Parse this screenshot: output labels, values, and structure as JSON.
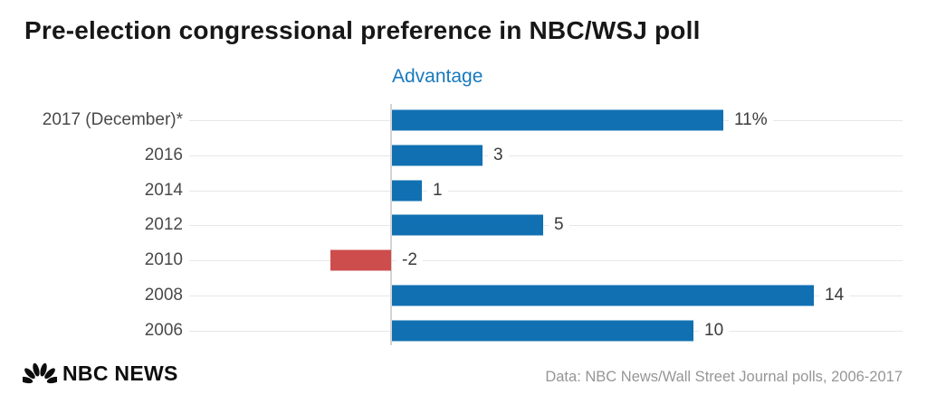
{
  "header": {
    "title": "Pre-election congressional preference in NBC/WSJ poll",
    "subtitle": "Advantage"
  },
  "chart_data": {
    "type": "bar",
    "orientation": "horizontal",
    "title": "Pre-election congressional preference in NBC/WSJ poll",
    "xlabel": "Advantage",
    "categories": [
      "2017 (December)*",
      "2016",
      "2014",
      "2012",
      "2010",
      "2008",
      "2006"
    ],
    "values": [
      11,
      3,
      1,
      5,
      -2,
      14,
      10
    ],
    "value_labels": [
      "11%",
      "3",
      "1",
      "5",
      "-2",
      "14",
      "10"
    ],
    "xlim": [
      -7,
      17
    ],
    "grid": true,
    "legend": "none",
    "bar_colors": {
      "positive": "#1170b2",
      "negative": "#cd4c4c"
    }
  },
  "footer": {
    "brand": "NBC NEWS",
    "source": "Data: NBC News/Wall Street Journal polls, 2006-2017"
  },
  "colors": {
    "background": "#ffffff",
    "title_text": "#171717",
    "subtitle_text": "#1779be",
    "category_text": "#4a4a4a",
    "value_text": "#3a3a3a",
    "gridline": "#e7e7e7",
    "axis_line": "#d4d4d4",
    "source_text": "#969696",
    "brand_text": "#0d0d0d"
  }
}
